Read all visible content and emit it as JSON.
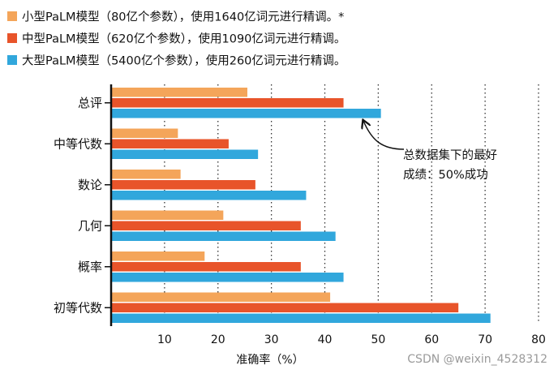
{
  "chart_data": {
    "type": "bar",
    "orientation": "horizontal",
    "categories": [
      "总评",
      "中等代数",
      "数论",
      "几何",
      "概率",
      "初等代数"
    ],
    "series": [
      {
        "name": "小型PaLM模型（80亿个参数），使用1640亿词元进行精调。*",
        "color": "#f4a55a",
        "values": [
          25.5,
          12.5,
          13,
          21,
          17.5,
          41
        ]
      },
      {
        "name": "中型PaLM模型（620亿个参数），使用1090亿词元进行精调。",
        "color": "#e8542a",
        "values": [
          43.5,
          22,
          27,
          35.5,
          35.5,
          65
        ]
      },
      {
        "name": "大型PaLM模型（5400亿个参数），使用260亿词元进行精调。",
        "color": "#31a7dc",
        "values": [
          50.5,
          27.5,
          36.5,
          42,
          43.5,
          71
        ]
      }
    ],
    "xlim": [
      0,
      80
    ],
    "xticks": [
      "10",
      "20",
      "30",
      "40",
      "50",
      "60",
      "70",
      "80"
    ],
    "xlabel": "准确率（%）",
    "grid": "dotted vertical",
    "legend": "top-left",
    "annotation": {
      "lines": [
        "总数据集下的最好",
        "成绩：50%成功"
      ],
      "points_to": "总评 / 大型PaLM模型"
    }
  },
  "watermark": "CSDN @weixin_4528312"
}
